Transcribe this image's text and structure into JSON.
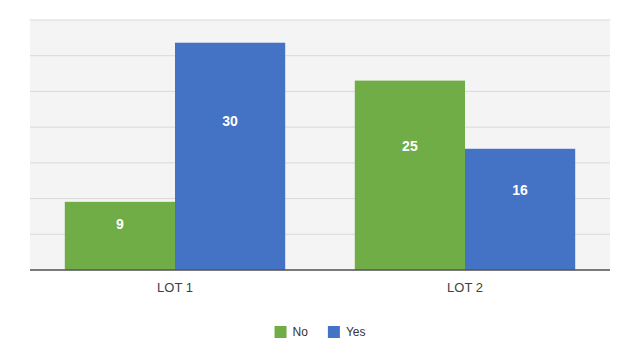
{
  "chart_data": {
    "type": "bar",
    "categories": [
      "LOT 1",
      "LOT 2"
    ],
    "series": [
      {
        "name": "No",
        "color": "#70AD47",
        "values": [
          9,
          25
        ]
      },
      {
        "name": "Yes",
        "color": "#4472C4",
        "values": [
          30,
          16
        ]
      }
    ],
    "ylim": [
      0,
      33
    ],
    "yticks": [
      0,
      4.714285714285714,
      9.428571428571429,
      14.142857142857142,
      18.857142857142858,
      23.571428571428573,
      28.285714285714285,
      33
    ],
    "grid": true,
    "data_labels": true,
    "tick_labels": "x",
    "legend": "bottom"
  }
}
